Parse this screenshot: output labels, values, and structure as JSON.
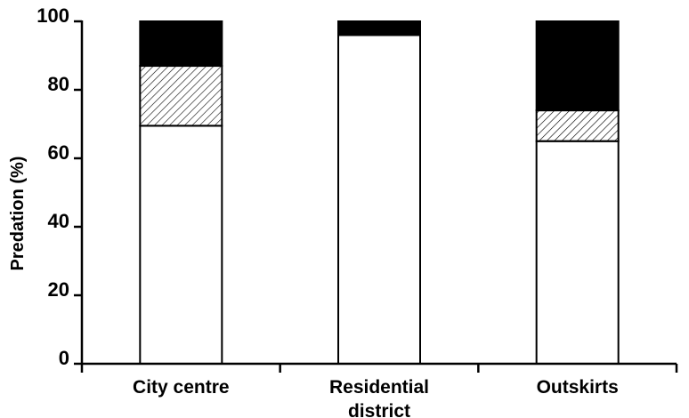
{
  "chart_data": {
    "type": "bar",
    "stacked": true,
    "title": "",
    "xlabel": "",
    "ylabel": "Predation (%)",
    "ylim": [
      0,
      100
    ],
    "yticks": [
      "0",
      "20",
      "40",
      "60",
      "80",
      "100"
    ],
    "categories": [
      [
        "City centre"
      ],
      [
        "Residential",
        "district"
      ],
      [
        "Outskirts"
      ]
    ],
    "series": [
      {
        "fill": "white",
        "color": "#ffffff",
        "values": [
          69.5,
          96,
          65
        ]
      },
      {
        "fill": "hatched",
        "color": "#ffffff",
        "values": [
          17.5,
          0,
          9
        ]
      },
      {
        "fill": "solid",
        "color": "#000000",
        "values": [
          13,
          4,
          26
        ]
      }
    ],
    "grid": false,
    "legend": "none"
  }
}
